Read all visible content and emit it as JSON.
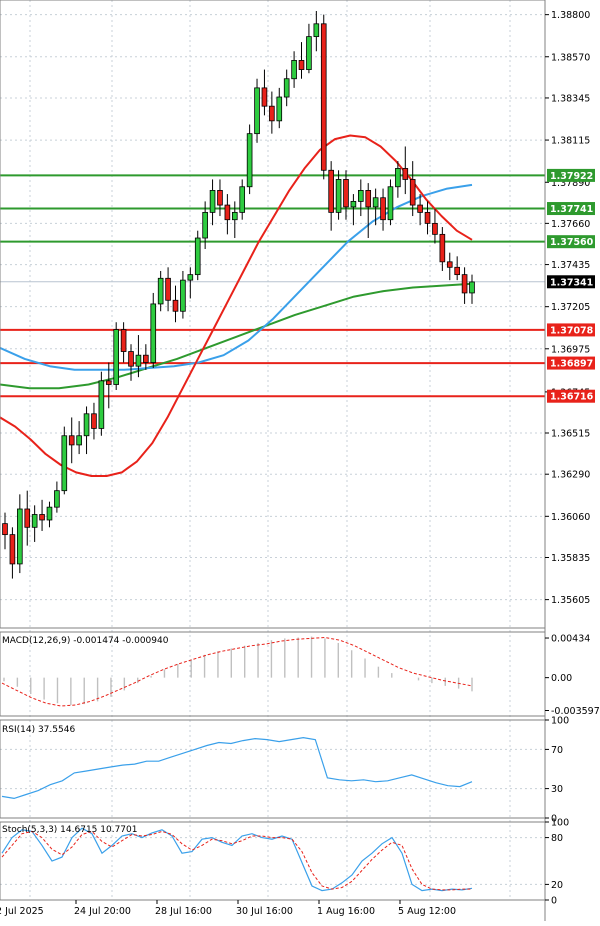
{
  "colors": {
    "bull": "#2ecc40",
    "bear": "#e8221a",
    "candle_outline": "#000000",
    "ma_red": "#e8221a",
    "ma_blue": "#3aa0ea",
    "ma_green": "#2e9a2e",
    "support_line": "#e8221a",
    "resistance_line": "#2e9a2e",
    "current_price_bg": "#000000",
    "osc_line": "#3aa0ea",
    "osc_signal": "#e8221a",
    "macd_hist": "#c0c0c0",
    "grid": "#c8d0d8"
  },
  "chart_data": [
    {
      "type": "candlestick",
      "panel": "price",
      "ylim": [
        1.3545,
        1.3888
      ],
      "y_ticks": [
        "1.38800",
        "1.38570",
        "1.38345",
        "1.38115",
        "1.37660",
        "1.37435",
        "1.37205",
        "1.36975",
        "1.36515",
        "1.36290",
        "1.36060",
        "1.35835",
        "1.35605"
      ],
      "partial_tick_labels": [
        "1.37890",
        "1.36745"
      ],
      "x_labels": [
        "2 Jul 2025",
        "24 Jul 20:00",
        "28 Jul 16:00",
        "30 Jul 16:00",
        "1 Aug 16:00",
        "5 Aug 12:00"
      ],
      "current_price": "1.37341",
      "horizontal_levels": [
        {
          "price": "1.37922",
          "kind": "resistance"
        },
        {
          "price": "1.37741",
          "kind": "resistance"
        },
        {
          "price": "1.37560",
          "kind": "resistance"
        },
        {
          "price": "1.37078",
          "kind": "support"
        },
        {
          "price": "1.36897",
          "kind": "support"
        },
        {
          "price": "1.36716",
          "kind": "support"
        }
      ],
      "candles": [
        [
          1.3602,
          1.3608,
          1.3588,
          1.3596
        ],
        [
          1.3596,
          1.36,
          1.3572,
          1.358
        ],
        [
          1.358,
          1.3618,
          1.3575,
          1.361
        ],
        [
          1.361,
          1.362,
          1.359,
          1.36
        ],
        [
          1.36,
          1.3612,
          1.3592,
          1.3607
        ],
        [
          1.3607,
          1.3615,
          1.3598,
          1.3604
        ],
        [
          1.3604,
          1.3614,
          1.36,
          1.3611
        ],
        [
          1.3611,
          1.3625,
          1.3608,
          1.362
        ],
        [
          1.362,
          1.3655,
          1.3618,
          1.365
        ],
        [
          1.365,
          1.366,
          1.3635,
          1.3645
        ],
        [
          1.3645,
          1.3658,
          1.364,
          1.365
        ],
        [
          1.365,
          1.3666,
          1.364,
          1.3662
        ],
        [
          1.3662,
          1.3668,
          1.3648,
          1.3654
        ],
        [
          1.3654,
          1.3685,
          1.365,
          1.368
        ],
        [
          1.368,
          1.369,
          1.3665,
          1.3678
        ],
        [
          1.3678,
          1.3712,
          1.3675,
          1.3708
        ],
        [
          1.3708,
          1.3712,
          1.369,
          1.3696
        ],
        [
          1.3696,
          1.37,
          1.368,
          1.3688
        ],
        [
          1.3688,
          1.3705,
          1.3682,
          1.3694
        ],
        [
          1.3694,
          1.37,
          1.3686,
          1.369
        ],
        [
          1.369,
          1.3728,
          1.3687,
          1.3722
        ],
        [
          1.3722,
          1.374,
          1.3718,
          1.3736
        ],
        [
          1.3736,
          1.3742,
          1.3718,
          1.3724
        ],
        [
          1.3724,
          1.3732,
          1.3712,
          1.3718
        ],
        [
          1.3718,
          1.374,
          1.3714,
          1.3735
        ],
        [
          1.3735,
          1.3742,
          1.3725,
          1.3738
        ],
        [
          1.3738,
          1.3762,
          1.3735,
          1.3758
        ],
        [
          1.3758,
          1.3778,
          1.3752,
          1.3772
        ],
        [
          1.3772,
          1.379,
          1.3765,
          1.3784
        ],
        [
          1.3784,
          1.379,
          1.377,
          1.3776
        ],
        [
          1.3776,
          1.3782,
          1.376,
          1.3768
        ],
        [
          1.3768,
          1.3778,
          1.3758,
          1.3772
        ],
        [
          1.3772,
          1.379,
          1.3768,
          1.3786
        ],
        [
          1.3786,
          1.382,
          1.3782,
          1.3815
        ],
        [
          1.3815,
          1.3845,
          1.381,
          1.384
        ],
        [
          1.384,
          1.385,
          1.3825,
          1.383
        ],
        [
          1.383,
          1.3838,
          1.3815,
          1.3822
        ],
        [
          1.3822,
          1.384,
          1.3818,
          1.3835
        ],
        [
          1.3835,
          1.385,
          1.383,
          1.3845
        ],
        [
          1.3845,
          1.386,
          1.384,
          1.3855
        ],
        [
          1.3855,
          1.3865,
          1.3845,
          1.385
        ],
        [
          1.385,
          1.3875,
          1.3848,
          1.3868
        ],
        [
          1.3868,
          1.3882,
          1.386,
          1.3875
        ],
        [
          1.3875,
          1.388,
          1.379,
          1.3795
        ],
        [
          1.3795,
          1.38,
          1.3762,
          1.3772
        ],
        [
          1.3772,
          1.3795,
          1.3768,
          1.379
        ],
        [
          1.379,
          1.3795,
          1.3768,
          1.3775
        ],
        [
          1.3775,
          1.3782,
          1.3765,
          1.3778
        ],
        [
          1.3778,
          1.379,
          1.377,
          1.3784
        ],
        [
          1.3784,
          1.3788,
          1.3758,
          1.3775
        ],
        [
          1.3775,
          1.3785,
          1.3765,
          1.378
        ],
        [
          1.378,
          1.3785,
          1.3762,
          1.3768
        ],
        [
          1.3768,
          1.379,
          1.3765,
          1.3786
        ],
        [
          1.3786,
          1.38,
          1.378,
          1.3796
        ],
        [
          1.3796,
          1.3808,
          1.3782,
          1.379
        ],
        [
          1.379,
          1.38,
          1.377,
          1.3776
        ],
        [
          1.3776,
          1.3782,
          1.3765,
          1.3772
        ],
        [
          1.3772,
          1.3778,
          1.376,
          1.3766
        ],
        [
          1.3766,
          1.3774,
          1.3755,
          1.376
        ],
        [
          1.376,
          1.3764,
          1.374,
          1.3745
        ],
        [
          1.3745,
          1.375,
          1.3735,
          1.3742
        ],
        [
          1.3742,
          1.3748,
          1.3735,
          1.3738
        ],
        [
          1.3738,
          1.3742,
          1.3722,
          1.3728
        ],
        [
          1.3728,
          1.3738,
          1.3722,
          1.3734
        ]
      ],
      "ma_red": [
        1.366,
        1.3655,
        1.3648,
        1.364,
        1.3634,
        1.363,
        1.3628,
        1.3628,
        1.363,
        1.3636,
        1.3646,
        1.366,
        1.3676,
        1.3692,
        1.3708,
        1.3724,
        1.374,
        1.3756,
        1.377,
        1.3784,
        1.3796,
        1.3806,
        1.3812,
        1.3814,
        1.3813,
        1.3808,
        1.38,
        1.379,
        1.3779,
        1.377,
        1.3762,
        1.3757
      ],
      "ma_blue": [
        1.3698,
        1.3692,
        1.3688,
        1.3686,
        1.3686,
        1.3686,
        1.3687,
        1.3688,
        1.369,
        1.3694,
        1.3702,
        1.3714,
        1.3728,
        1.3742,
        1.3756,
        1.3767,
        1.3775,
        1.3781,
        1.3785,
        1.3787
      ],
      "ma_green": [
        1.3678,
        1.3676,
        1.3676,
        1.3678,
        1.3682,
        1.3687,
        1.3692,
        1.3698,
        1.3704,
        1.371,
        1.3716,
        1.3721,
        1.3726,
        1.3729,
        1.3731,
        1.3732,
        1.3733
      ]
    },
    {
      "type": "line",
      "panel": "macd",
      "label": "MACD(12,26,9) -0.001474 -0.000940",
      "ylim": [
        -0.0042,
        0.005
      ],
      "y_ticks": [
        "0.00434",
        "0.00",
        "-0.003597"
      ],
      "histogram": [
        -0.0004,
        -0.001,
        -0.0018,
        -0.0024,
        -0.0028,
        -0.003,
        -0.0029,
        -0.0026,
        -0.0021,
        -0.0014,
        -0.0006,
        0.0002,
        0.0009,
        0.0015,
        0.002,
        0.0025,
        0.0029,
        0.0032,
        0.0035,
        0.0038,
        0.0041,
        0.0043,
        0.0044,
        0.0045,
        0.0043,
        0.0038,
        0.003,
        0.0021,
        0.0012,
        0.0005,
        0.0,
        -0.0003,
        -0.0006,
        -0.0009,
        -0.0012,
        -0.0015
      ],
      "signal": [
        -0.0006,
        -0.0014,
        -0.0022,
        -0.0028,
        -0.0031,
        -0.003,
        -0.0026,
        -0.002,
        -0.0013,
        -0.0006,
        0.0002,
        0.0009,
        0.0015,
        0.002,
        0.0025,
        0.0029,
        0.0032,
        0.0035,
        0.0037,
        0.004,
        0.0042,
        0.0043,
        0.0044,
        0.0041,
        0.0035,
        0.0027,
        0.0019,
        0.0011,
        0.0005,
        0.0001,
        -0.0003,
        -0.0006,
        -0.0009
      ]
    },
    {
      "type": "line",
      "panel": "rsi",
      "label": "RSI(14) 37.5546",
      "ylim": [
        0,
        100
      ],
      "y_ticks": [
        "100",
        "70",
        "30",
        "0"
      ],
      "values": [
        22,
        20,
        24,
        28,
        34,
        38,
        46,
        48,
        50,
        52,
        54,
        55,
        58,
        58,
        62,
        66,
        70,
        74,
        77,
        76,
        79,
        81,
        80,
        78,
        80,
        82,
        80,
        41,
        39,
        38,
        39,
        37,
        38,
        41,
        44,
        40,
        36,
        33,
        32,
        37
      ]
    },
    {
      "type": "line",
      "panel": "stoch",
      "label": "Stoch(5,3,3) 14.6715 10.7701",
      "ylim": [
        0,
        100
      ],
      "y_ticks": [
        "100",
        "80",
        "20",
        "0"
      ],
      "main": [
        60,
        80,
        90,
        88,
        70,
        50,
        55,
        80,
        92,
        85,
        60,
        70,
        82,
        85,
        80,
        86,
        90,
        82,
        60,
        62,
        78,
        80,
        74,
        70,
        82,
        85,
        80,
        78,
        82,
        78,
        48,
        18,
        12,
        14,
        22,
        32,
        50,
        60,
        72,
        80,
        60,
        20,
        12,
        14,
        12,
        14,
        13,
        15
      ],
      "signal": [
        55,
        70,
        85,
        88,
        80,
        65,
        58,
        68,
        84,
        88,
        75,
        68,
        76,
        84,
        82,
        84,
        88,
        84,
        72,
        64,
        70,
        78,
        76,
        72,
        76,
        82,
        82,
        80,
        80,
        78,
        62,
        35,
        18,
        14,
        16,
        24,
        38,
        52,
        64,
        74,
        70,
        40,
        20,
        14,
        13,
        13,
        14,
        14
      ]
    }
  ]
}
